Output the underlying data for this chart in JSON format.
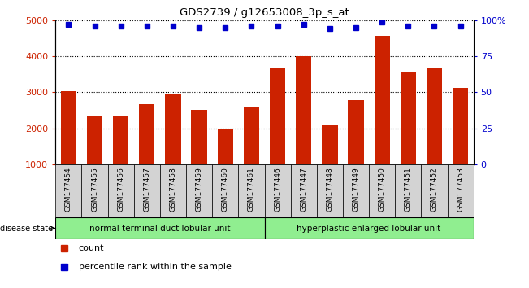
{
  "title": "GDS2739 / g12653008_3p_s_at",
  "samples": [
    "GSM177454",
    "GSM177455",
    "GSM177456",
    "GSM177457",
    "GSM177458",
    "GSM177459",
    "GSM177460",
    "GSM177461",
    "GSM177446",
    "GSM177447",
    "GSM177448",
    "GSM177449",
    "GSM177450",
    "GSM177451",
    "GSM177452",
    "GSM177453"
  ],
  "counts": [
    3020,
    2360,
    2340,
    2660,
    2960,
    2520,
    2000,
    2600,
    3660,
    4010,
    2080,
    2780,
    4560,
    3570,
    3680,
    3130
  ],
  "percentiles": [
    97,
    96,
    96,
    96,
    96,
    95,
    95,
    96,
    96,
    97,
    94,
    95,
    99,
    96,
    96,
    96
  ],
  "group1_label": "normal terminal duct lobular unit",
  "group2_label": "hyperplastic enlarged lobular unit",
  "group1_count": 8,
  "group2_count": 8,
  "bar_color": "#cc2200",
  "dot_color": "#0000cc",
  "ylim_left": [
    1000,
    5000
  ],
  "ylim_right": [
    0,
    100
  ],
  "yticks_left": [
    1000,
    2000,
    3000,
    4000,
    5000
  ],
  "yticks_right": [
    0,
    25,
    50,
    75,
    100
  ],
  "background_group": "#90ee90",
  "tick_bg_color": "#d3d3d3",
  "legend_count_label": "count",
  "legend_pct_label": "percentile rank within the sample"
}
